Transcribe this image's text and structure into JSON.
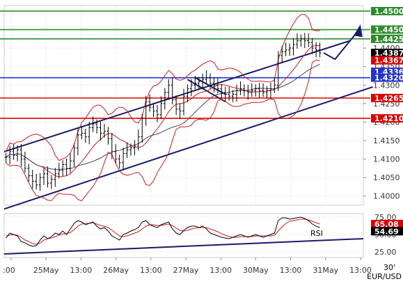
{
  "chart_data": [
    {
      "type": "candlestick",
      "symbol": "EUR/USD",
      "timeframe": "30'",
      "x_tick_labels": [
        ":00",
        "25May",
        "13:00",
        "26May",
        "13:00",
        "27May",
        "13:00",
        "30May",
        "13:00",
        "31May",
        "13:00"
      ],
      "y_tick_labels": [
        "1.4000",
        "1.4050",
        "1.4100",
        "1.4150",
        "1.4200",
        "1.4250",
        "1.4300",
        "1.4350",
        "1.4400"
      ],
      "ylim": [
        1.3975,
        1.4515
      ],
      "levels": [
        {
          "value": 1.45,
          "label": "1.4500",
          "color": "#2e8b2e"
        },
        {
          "value": 1.445,
          "label": "1.4450",
          "color": "#2e8b2e"
        },
        {
          "value": 1.4425,
          "label": "1.4425",
          "color": "#2e8b2e"
        },
        {
          "value": 1.4387,
          "label": "1.4387",
          "color": "#000000"
        },
        {
          "value": 1.4367,
          "label": "1.4367",
          "color": "#dd0000"
        },
        {
          "value": 1.4336,
          "label": "1.4336",
          "color": "#2233cc"
        },
        {
          "value": 1.432,
          "label": "1.4320",
          "color": "#2233cc"
        },
        {
          "value": 1.4265,
          "label": "1.4265",
          "color": "#dd0000"
        },
        {
          "value": 1.421,
          "label": "1.4210",
          "color": "#dd0000"
        }
      ],
      "channel_upper": [
        [
          0,
          1.412
        ],
        [
          91,
          1.442
        ]
      ],
      "channel_lower": [
        [
          0,
          1.3965
        ],
        [
          97,
          1.4295
        ]
      ],
      "close_series": [
        1.4105,
        1.412,
        1.411,
        1.4125,
        1.41,
        1.4075,
        1.4055,
        1.404,
        1.403,
        1.405,
        1.406,
        1.4035,
        1.4045,
        1.406,
        1.407,
        1.4085,
        1.4075,
        1.4095,
        1.413,
        1.4165,
        1.417,
        1.416,
        1.4185,
        1.4195,
        1.4185,
        1.417,
        1.4175,
        1.4155,
        1.412,
        1.41,
        1.409,
        1.4115,
        1.4125,
        1.413,
        1.4135,
        1.416,
        1.421,
        1.4255,
        1.424,
        1.423,
        1.422,
        1.425,
        1.428,
        1.43,
        1.426,
        1.4235,
        1.423,
        1.427,
        1.429,
        1.43,
        1.4305,
        1.431,
        1.4315,
        1.432,
        1.4305,
        1.43,
        1.429,
        1.428,
        1.4275,
        1.427,
        1.4275,
        1.4285,
        1.429,
        1.4285,
        1.428,
        1.4285,
        1.429,
        1.4285,
        1.428,
        1.4285,
        1.429,
        1.43,
        1.438,
        1.439,
        1.4395,
        1.44,
        1.441,
        1.442,
        1.4425,
        1.442,
        1.4415,
        1.44,
        1.4395,
        1.4387
      ],
      "projection": [
        [
          84,
          1.4387
        ],
        [
          87,
          1.437
        ],
        [
          93,
          1.4445
        ]
      ],
      "annotations": [
        "EUR/USD",
        "30'"
      ]
    },
    {
      "type": "line",
      "name": "RSI",
      "y_tick_labels": [
        "25.00",
        "50.00",
        "75.00"
      ],
      "ylim": [
        17,
        80
      ],
      "current_values": [
        "65.08",
        "54.69"
      ],
      "trendline": [
        [
          0,
          22
        ],
        [
          97,
          44
        ]
      ],
      "rsi_values": [
        45,
        52,
        50,
        48,
        40,
        38,
        35,
        33,
        34,
        42,
        48,
        44,
        47,
        52,
        50,
        55,
        50,
        58,
        66,
        70,
        68,
        64,
        66,
        68,
        62,
        58,
        60,
        55,
        48,
        45,
        42,
        50,
        52,
        55,
        57,
        60,
        68,
        70,
        64,
        62,
        60,
        64,
        66,
        68,
        58,
        52,
        50,
        56,
        60,
        62,
        62,
        60,
        62,
        58,
        52,
        50,
        48,
        46,
        45,
        44,
        46,
        48,
        50,
        48,
        46,
        48,
        50,
        48,
        46,
        48,
        50,
        52,
        70,
        74,
        74,
        72,
        73,
        74,
        75,
        73,
        70,
        65,
        62,
        60
      ],
      "signal_values": [
        48,
        49,
        50,
        49,
        46,
        42,
        40,
        37,
        36,
        38,
        42,
        44,
        45,
        47,
        49,
        51,
        51,
        53,
        57,
        62,
        65,
        66,
        66,
        67,
        65,
        63,
        62,
        60,
        56,
        52,
        48,
        47,
        48,
        50,
        52,
        54,
        58,
        62,
        64,
        64,
        63,
        63,
        64,
        65,
        63,
        59,
        56,
        55,
        56,
        58,
        59,
        60,
        60,
        60,
        58,
        56,
        54,
        51,
        49,
        47,
        46,
        46,
        47,
        47,
        47,
        47,
        48,
        48,
        48,
        48,
        48,
        49,
        55,
        61,
        66,
        69,
        70,
        71,
        72,
        72,
        71,
        69,
        67,
        65
      ]
    }
  ]
}
